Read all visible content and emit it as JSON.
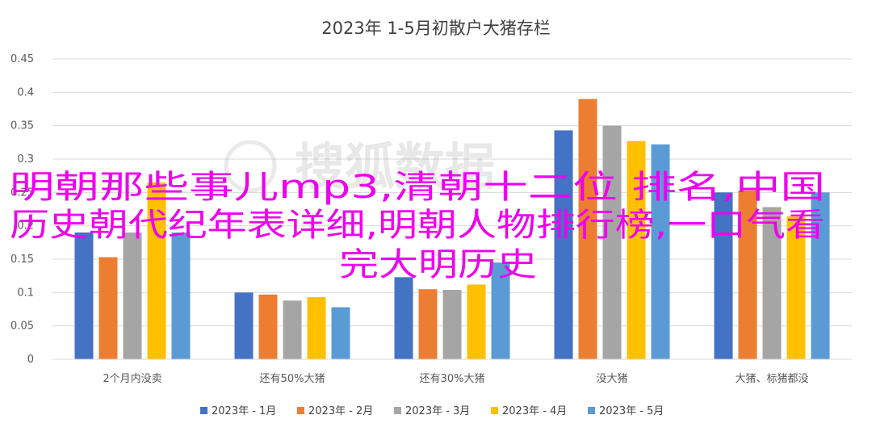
{
  "chart_data": {
    "type": "bar",
    "title": "2023年 1-5月初散户大猪存栏",
    "categories": [
      "2个月内没卖",
      "还有50%大猪",
      "还有30%大猪",
      "没大猪",
      "大猪、标猪都没"
    ],
    "series": [
      {
        "name": "2023年 - 1月",
        "color": "#4472c4",
        "values": [
          0.19,
          0.1,
          0.123,
          0.343,
          0.25
        ]
      },
      {
        "name": "2023年 - 2月",
        "color": "#ed7d31",
        "values": [
          0.153,
          0.097,
          0.105,
          0.39,
          0.253
        ]
      },
      {
        "name": "2023年 - 3月",
        "color": "#a5a5a5",
        "values": [
          0.19,
          0.088,
          0.104,
          0.35,
          0.228
        ]
      },
      {
        "name": "2023年 - 4月",
        "color": "#ffc000",
        "values": [
          0.265,
          0.093,
          0.112,
          0.327,
          0.214
        ]
      },
      {
        "name": "2023年 - 5月",
        "color": "#5b9bd5",
        "values": [
          0.19,
          0.078,
          0.145,
          0.322,
          0.25
        ]
      }
    ],
    "ylim": [
      0,
      0.45
    ],
    "yticks": [
      0,
      0.05,
      0.1,
      0.15,
      0.2,
      0.25,
      0.3,
      0.35,
      0.4,
      0.45
    ],
    "ytick_labels": [
      "0",
      "0.05",
      "0.1",
      "0.15",
      "0.2",
      "0.25",
      "0.3",
      "0.35",
      "0.4",
      "0.45"
    ],
    "xlabel": "",
    "ylabel": "",
    "grid": true,
    "legend_position": "bottom"
  },
  "watermark": {
    "text": "搜狐数据"
  },
  "overlay": {
    "color": "#ee00ee",
    "lines": [
      "明朝那些事儿mp3,清朝十二位 排名,中国",
      "历史朝代纪年表详细,明朝人物排行榜,一口气看",
      "完大明历史"
    ]
  }
}
